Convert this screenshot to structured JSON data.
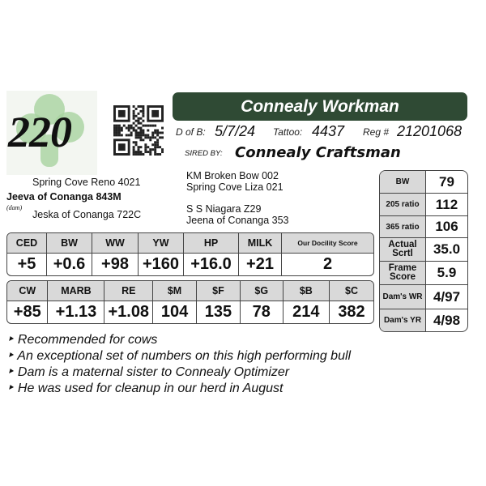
{
  "lot_number": "220",
  "animal_name": "Connealy Workman",
  "birth": {
    "label": "D of B:",
    "value": "5/7/24"
  },
  "tattoo": {
    "label": "Tattoo:",
    "value": "4437"
  },
  "registration": {
    "label": "Reg #",
    "value": "21201068"
  },
  "sire": {
    "label": "SIRED BY:",
    "value": "Connealy Craftsman"
  },
  "pedigree": {
    "sire_sire": "KM Broken Bow 002",
    "sire_dam": "Spring Cove Liza 021",
    "dam_sire_sire": "S S Niagara Z29",
    "dam_sire_dam": "Jeena of Conanga 353",
    "dam_sire": "Spring Cove Reno 4021",
    "dam": "Jeeva of Conanga 843M",
    "dam_label": "(dam)",
    "dam_dam": "Jeska of Conanga 722C"
  },
  "epd_row1": {
    "headers": [
      "CED",
      "BW",
      "WW",
      "YW",
      "HP",
      "MILK",
      "Our Docility Score"
    ],
    "values": [
      "+5",
      "+0.6",
      "+98",
      "+160",
      "+16.0",
      "+21",
      "2"
    ]
  },
  "epd_row2": {
    "headers": [
      "CW",
      "MARB",
      "RE",
      "$M",
      "$F",
      "$G",
      "$B",
      "$C"
    ],
    "values": [
      "+85",
      "+1.13",
      "+1.08",
      "104",
      "135",
      "78",
      "214",
      "382"
    ]
  },
  "measures": [
    {
      "label": "BW",
      "value": "79"
    },
    {
      "label": "205 ratio",
      "value": "112"
    },
    {
      "label": "365 ratio",
      "value": "106"
    },
    {
      "label": "Actual Scrtl",
      "value": "35.0"
    },
    {
      "label": "Frame Score",
      "value": "5.9"
    },
    {
      "label": "Dam's WR",
      "value": "4/97"
    },
    {
      "label": "Dam's YR",
      "value": "4/98"
    }
  ],
  "notes": [
    "Recommended for cows",
    "An exceptional set of numbers on this high performing bull",
    "Dam is a maternal sister to Connealy Optimizer",
    "He was used for cleanup in our herd in August"
  ],
  "colors": {
    "title_bar": "#2f4a34",
    "header_cell": "#d9d9d9",
    "shamrock": "#a8d3a0"
  }
}
